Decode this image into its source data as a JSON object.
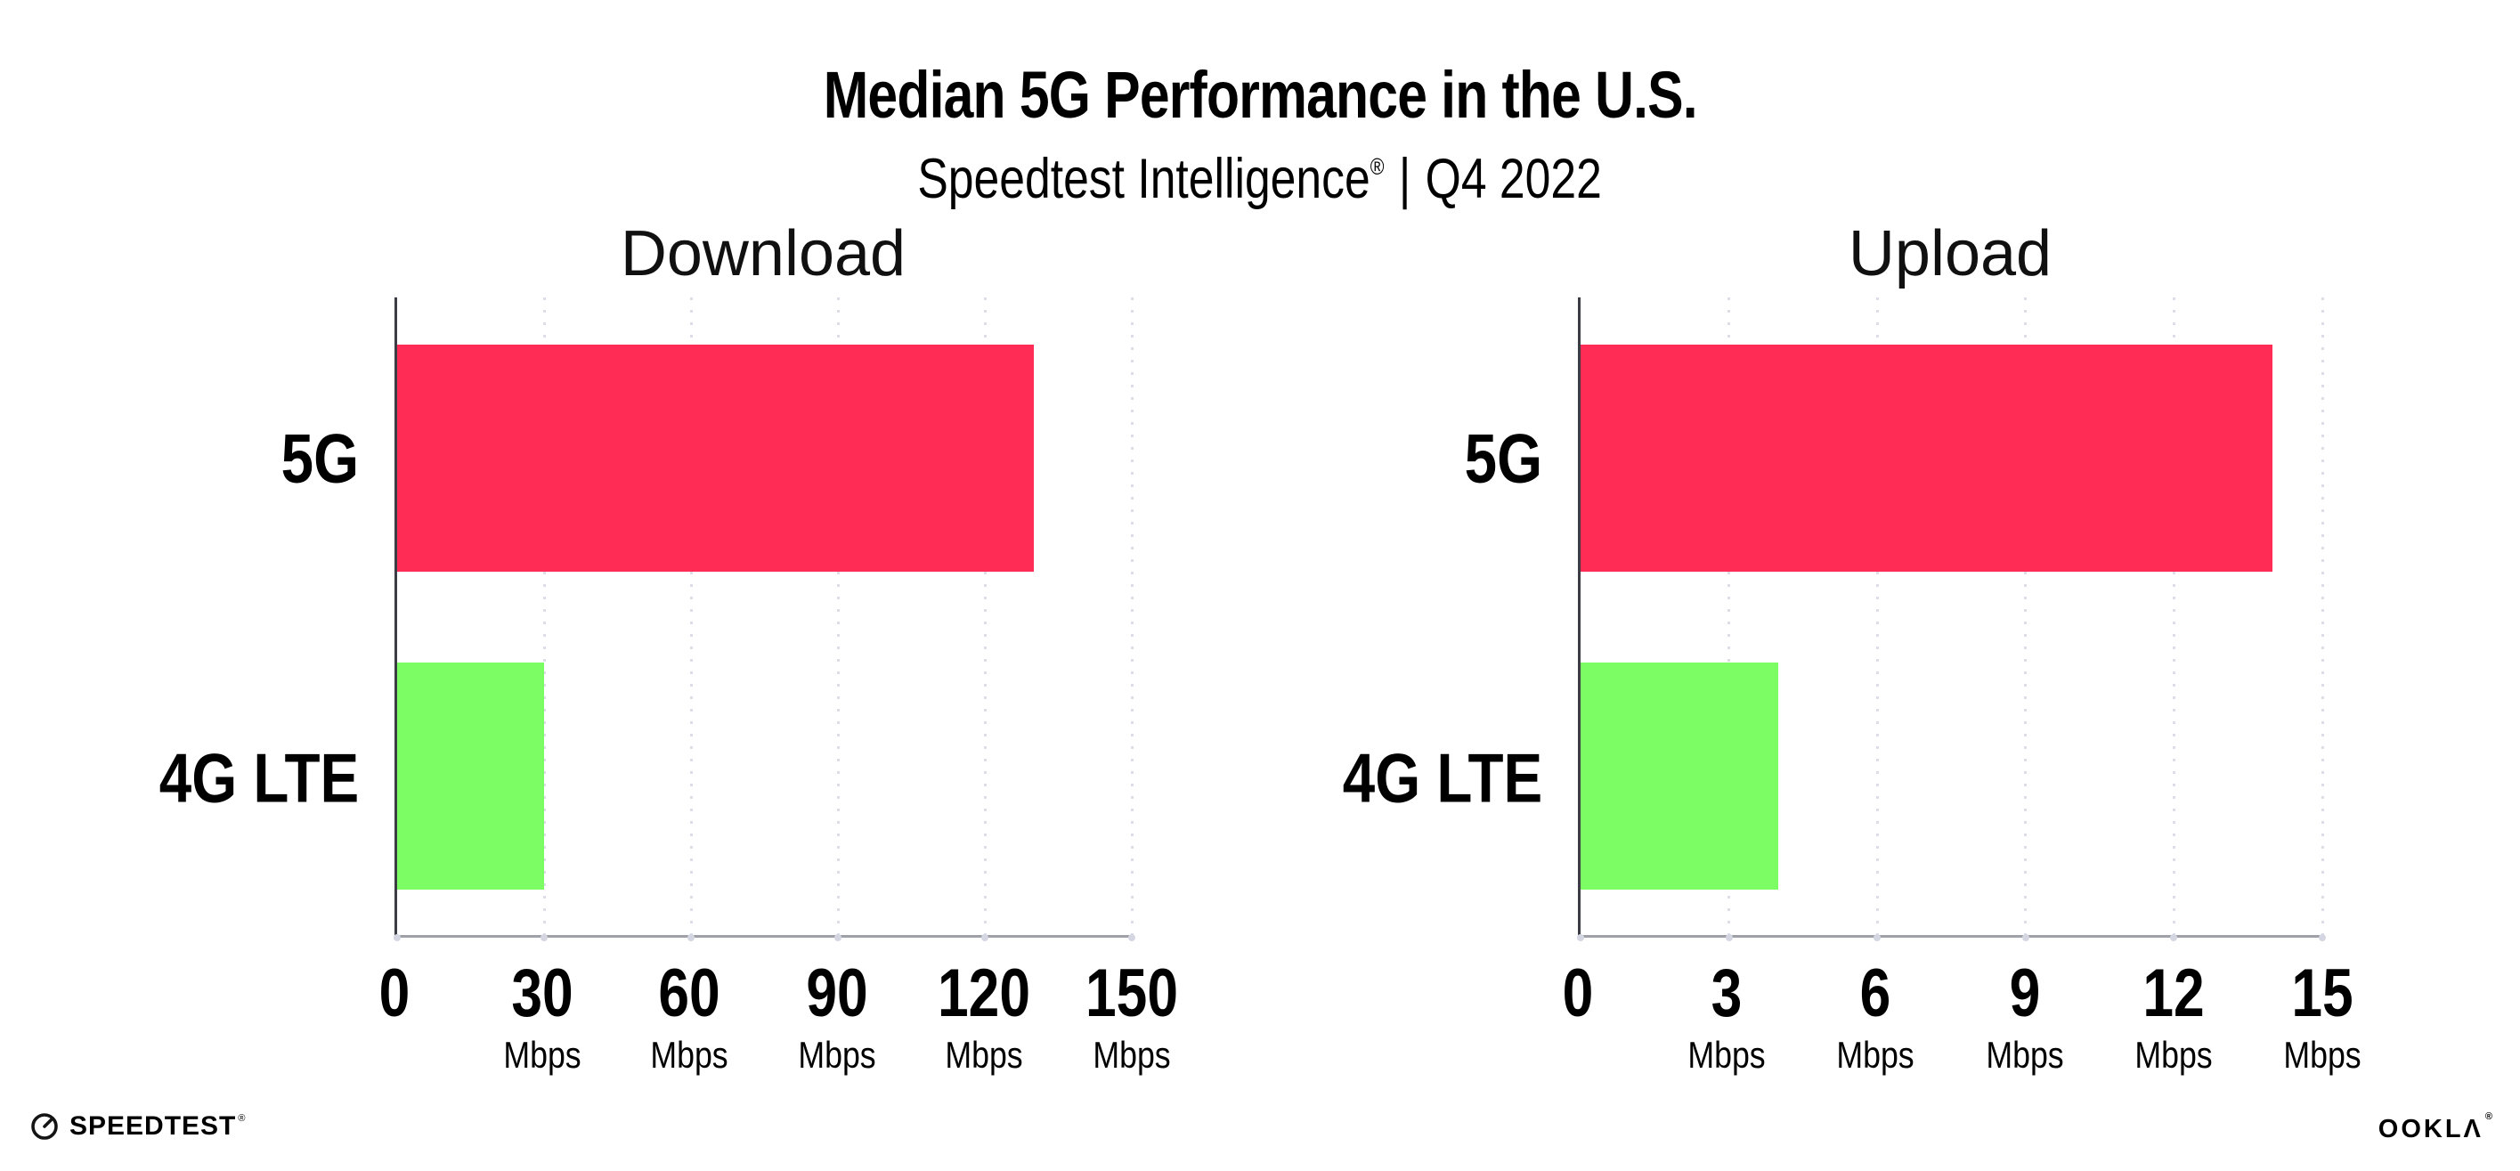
{
  "header": {
    "title": "Median 5G Performance in the U.S.",
    "subtitle_brand": "Speedtest Intelligence",
    "subtitle_mark": "®",
    "subtitle_separator": "|",
    "subtitle_period": "Q4 2022"
  },
  "chart_data": [
    {
      "type": "bar",
      "orientation": "horizontal",
      "title": "Download",
      "categories": [
        "5G",
        "4G LTE"
      ],
      "values": [
        130,
        30
      ],
      "unit": "Mbps",
      "xlim": [
        0,
        150
      ],
      "xticks": [
        0,
        30,
        60,
        90,
        120,
        150
      ],
      "bar_colors": [
        "#FF2D55",
        "#7DFD64"
      ],
      "grid": "vertical-dotted",
      "legend": "none"
    },
    {
      "type": "bar",
      "orientation": "horizontal",
      "title": "Upload",
      "categories": [
        "5G",
        "4G LTE"
      ],
      "values": [
        14,
        4
      ],
      "unit": "Mbps",
      "xlim": [
        0,
        15
      ],
      "xticks": [
        0,
        3,
        6,
        9,
        12,
        15
      ],
      "bar_colors": [
        "#FF2D55",
        "#7DFD64"
      ],
      "grid": "vertical-dotted",
      "legend": "none"
    }
  ],
  "footer": {
    "speedtest_label": "SPEEDTEST",
    "speedtest_mark": "®",
    "ookla_label": "OOKLΛ",
    "ookla_mark": "®"
  },
  "colors": {
    "bar_5g": "#FF2D55",
    "bar_4g_lte": "#7DFD64",
    "gridline": "#DCDDE8",
    "x_axis_line": "#9FA0A8",
    "y_axis_line": "#3C3C44",
    "background": "#FFFFFF",
    "text": "#000000"
  }
}
